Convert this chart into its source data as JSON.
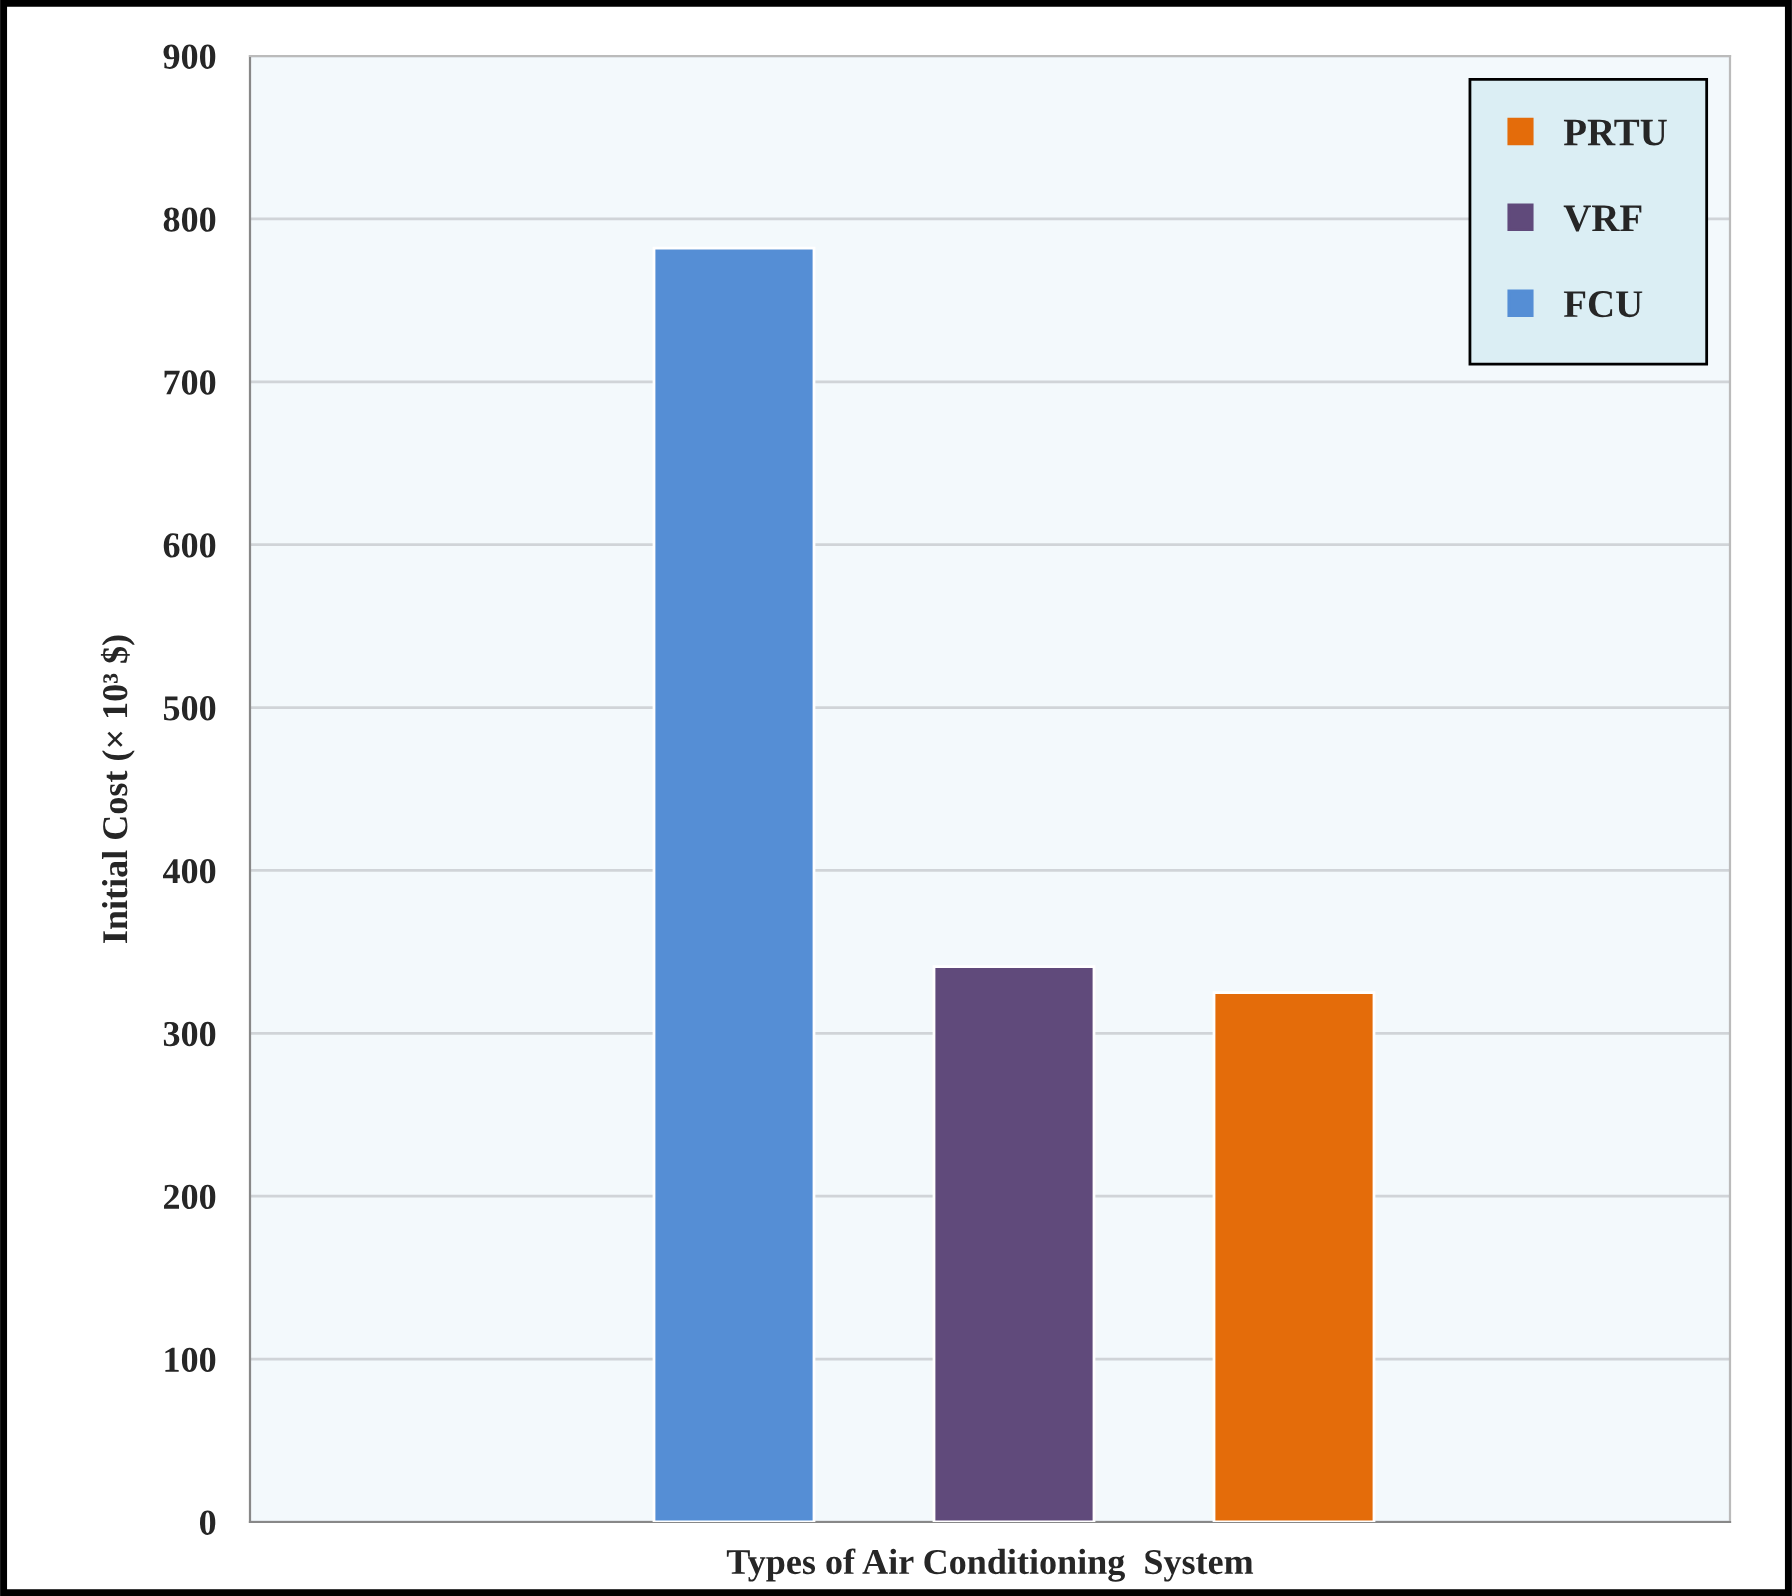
{
  "chart_data": {
    "type": "bar",
    "xlabel": "Types of Air Conditioning  System",
    "ylabel": "Initial Cost (× 10³ $)",
    "categories": [
      null
    ],
    "series": [
      {
        "name": "FCU",
        "color": "#558ed5",
        "values": [
          782
        ]
      },
      {
        "name": "VRF",
        "color": "#604a7b",
        "values": [
          341
        ]
      },
      {
        "name": "PRTU",
        "color": "#e46c0a",
        "values": [
          325
        ]
      }
    ],
    "ylim": [
      0,
      900
    ],
    "yticks": [
      0,
      100,
      200,
      300,
      400,
      500,
      600,
      700,
      800,
      900
    ],
    "grid": "y",
    "legend": "top right"
  }
}
